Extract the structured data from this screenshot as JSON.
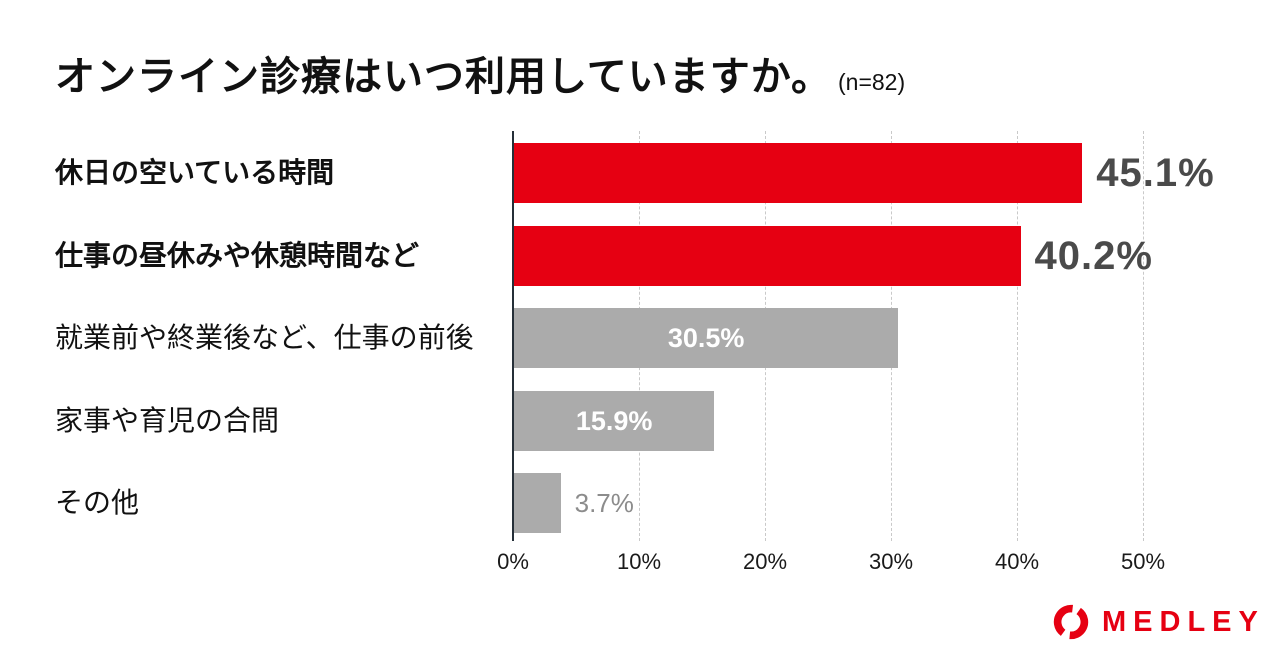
{
  "title": {
    "text": "オンライン診療はいつ利用していますか。",
    "sample_size": "(n=82)"
  },
  "logo": {
    "text": "MEDLEY",
    "color": "#e60012",
    "icon": "medley-swirl-icon"
  },
  "chart_data": {
    "type": "bar",
    "orientation": "horizontal",
    "title": "オンライン診療はいつ利用していますか。(n=82)",
    "categories": [
      "休日の空いている時間",
      "仕事の昼休みや休憩時間など",
      "就業前や終業後など、仕事の前後",
      "家事や育児の合間",
      "その他"
    ],
    "values": [
      45.1,
      40.2,
      30.5,
      15.9,
      3.7
    ],
    "value_labels": [
      "45.1%",
      "40.2%",
      "30.5%",
      "15.9%",
      "3.7%"
    ],
    "bar_colors": [
      "#e60012",
      "#e60012",
      "#ababab",
      "#ababab",
      "#ababab"
    ],
    "category_bold": [
      true,
      true,
      false,
      false,
      false
    ],
    "value_label_style": [
      "outside-large",
      "outside-large",
      "inside",
      "inside",
      "outside-small"
    ],
    "xlabel": "",
    "ylabel": "",
    "xlim": [
      0,
      50
    ],
    "x_ticks": [
      "0%",
      "10%",
      "20%",
      "30%",
      "40%",
      "50%"
    ],
    "grid": "vertical-dashed",
    "legend": "none",
    "styles": {
      "grid_color": "#c9c9c9",
      "axis_color": "#252f38",
      "tick_color": "#1a1a1a",
      "value_dark": "#4a4a4a",
      "value_white": "#ffffff",
      "value_gray": "#8c8c8c"
    }
  }
}
